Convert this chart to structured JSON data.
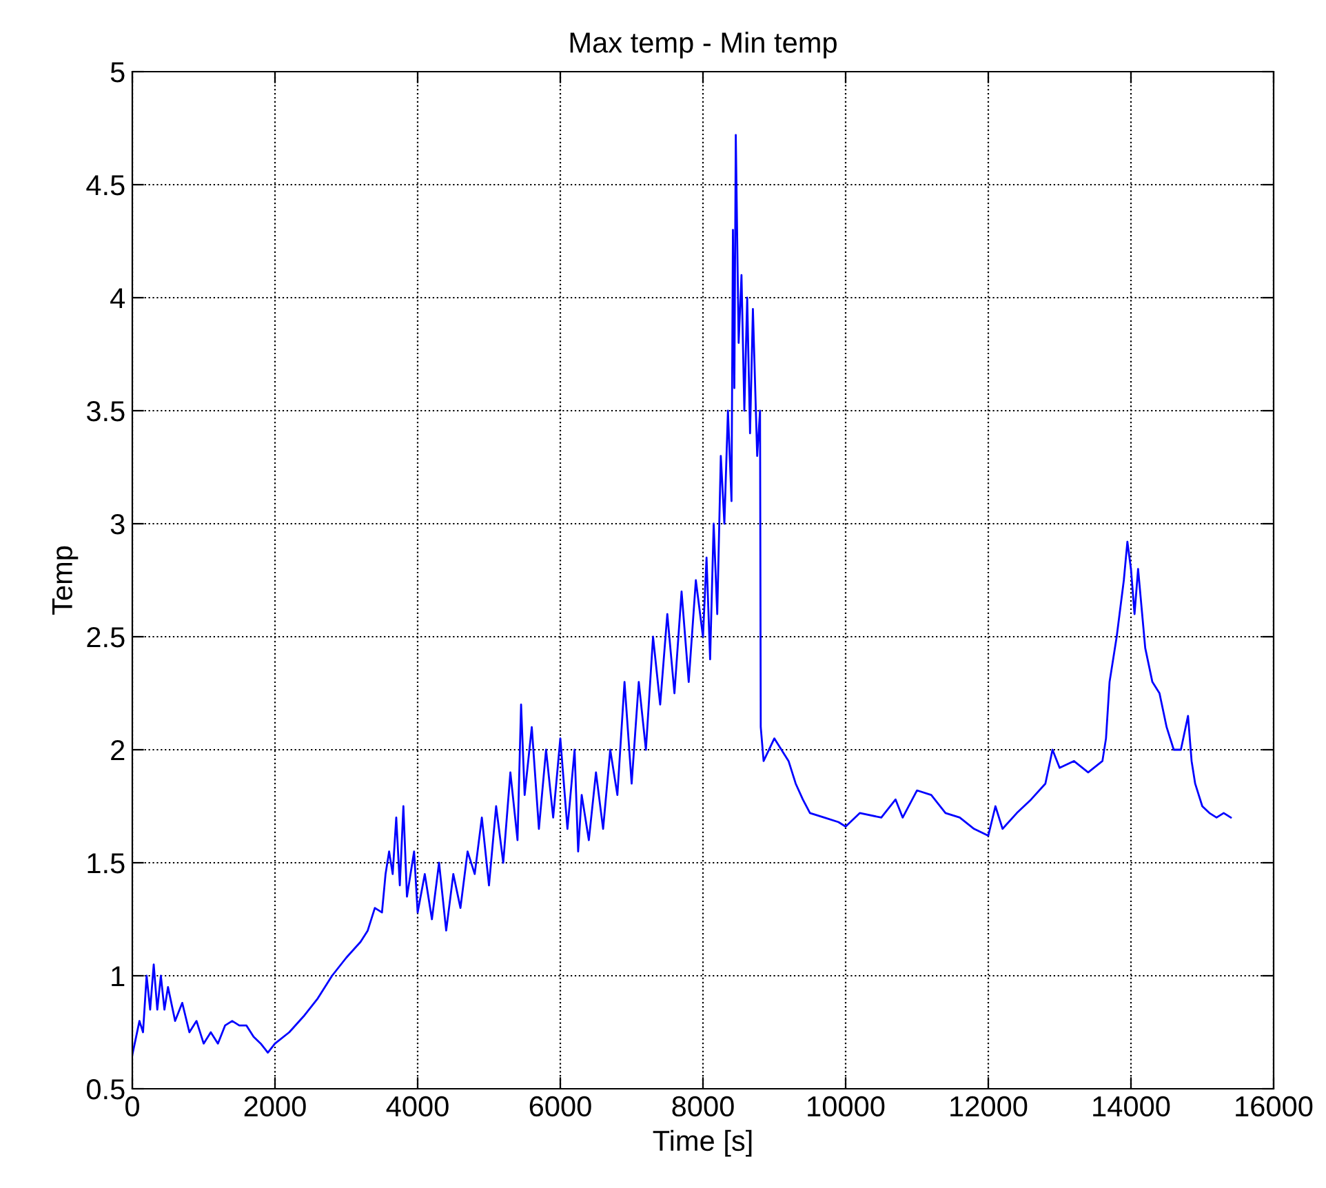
{
  "chart_data": {
    "type": "line",
    "title": "Max temp - Min temp",
    "xlabel": "Time [s]",
    "ylabel": "Temp",
    "x": [
      0,
      100,
      150,
      200,
      250,
      300,
      350,
      400,
      450,
      500,
      600,
      700,
      800,
      900,
      1000,
      1100,
      1200,
      1300,
      1400,
      1500,
      1600,
      1700,
      1800,
      1900,
      2000,
      2200,
      2400,
      2600,
      2800,
      3000,
      3200,
      3300,
      3400,
      3500,
      3550,
      3600,
      3650,
      3700,
      3750,
      3800,
      3850,
      3950,
      4000,
      4100,
      4200,
      4300,
      4400,
      4500,
      4600,
      4700,
      4800,
      4900,
      5000,
      5100,
      5200,
      5300,
      5400,
      5450,
      5500,
      5600,
      5700,
      5800,
      5900,
      6000,
      6100,
      6200,
      6250,
      6300,
      6400,
      6500,
      6600,
      6700,
      6800,
      6900,
      7000,
      7100,
      7200,
      7300,
      7400,
      7500,
      7600,
      7700,
      7800,
      7900,
      8000,
      8050,
      8100,
      8150,
      8200,
      8250,
      8300,
      8350,
      8400,
      8420,
      8440,
      8460,
      8500,
      8540,
      8580,
      8620,
      8660,
      8700,
      8760,
      8800,
      8810,
      8850,
      9000,
      9100,
      9200,
      9300,
      9400,
      9500,
      9700,
      9900,
      10000,
      10200,
      10500,
      10700,
      10800,
      11000,
      11200,
      11400,
      11600,
      11800,
      12000,
      12100,
      12200,
      12400,
      12600,
      12800,
      12900,
      13000,
      13200,
      13400,
      13600,
      13650,
      13700,
      13800,
      13900,
      13950,
      14000,
      14050,
      14100,
      14200,
      14300,
      14400,
      14500,
      14600,
      14700,
      14800,
      14850,
      14900,
      15000,
      15100,
      15200,
      15300,
      15400
    ],
    "values": [
      0.65,
      0.8,
      0.75,
      1.0,
      0.85,
      1.05,
      0.85,
      1.0,
      0.85,
      0.95,
      0.8,
      0.88,
      0.75,
      0.8,
      0.7,
      0.75,
      0.7,
      0.78,
      0.8,
      0.78,
      0.78,
      0.73,
      0.7,
      0.66,
      0.7,
      0.75,
      0.82,
      0.9,
      1.0,
      1.08,
      1.15,
      1.2,
      1.3,
      1.28,
      1.45,
      1.55,
      1.45,
      1.7,
      1.4,
      1.75,
      1.35,
      1.55,
      1.28,
      1.45,
      1.25,
      1.5,
      1.2,
      1.45,
      1.3,
      1.55,
      1.45,
      1.7,
      1.4,
      1.75,
      1.5,
      1.9,
      1.6,
      2.2,
      1.8,
      2.1,
      1.65,
      2.0,
      1.7,
      2.05,
      1.65,
      2.0,
      1.55,
      1.8,
      1.6,
      1.9,
      1.65,
      2.0,
      1.8,
      2.3,
      1.85,
      2.3,
      2.0,
      2.5,
      2.2,
      2.6,
      2.25,
      2.7,
      2.3,
      2.75,
      2.5,
      2.85,
      2.4,
      3.0,
      2.6,
      3.3,
      3.0,
      3.5,
      3.1,
      4.3,
      3.6,
      4.72,
      3.8,
      4.1,
      3.5,
      4.0,
      3.4,
      3.95,
      3.3,
      3.5,
      2.1,
      1.95,
      2.05,
      2.0,
      1.95,
      1.85,
      1.78,
      1.72,
      1.7,
      1.68,
      1.66,
      1.72,
      1.7,
      1.78,
      1.7,
      1.82,
      1.8,
      1.72,
      1.7,
      1.65,
      1.62,
      1.75,
      1.65,
      1.72,
      1.78,
      1.85,
      2.0,
      1.92,
      1.95,
      1.9,
      1.95,
      2.05,
      2.3,
      2.5,
      2.75,
      2.92,
      2.8,
      2.6,
      2.8,
      2.45,
      2.3,
      2.25,
      2.1,
      2.0,
      2.0,
      2.15,
      1.95,
      1.85,
      1.75,
      1.72,
      1.7,
      1.72,
      1.7
    ],
    "color": "#0000ff",
    "xlim": [
      0,
      16000
    ],
    "ylim": [
      0.5,
      5
    ],
    "xticks": [
      0,
      2000,
      4000,
      6000,
      8000,
      10000,
      12000,
      14000,
      16000
    ],
    "yticks": [
      0.5,
      1,
      1.5,
      2,
      2.5,
      3,
      3.5,
      4,
      4.5,
      5
    ],
    "grid": true,
    "line_style": "solid"
  }
}
